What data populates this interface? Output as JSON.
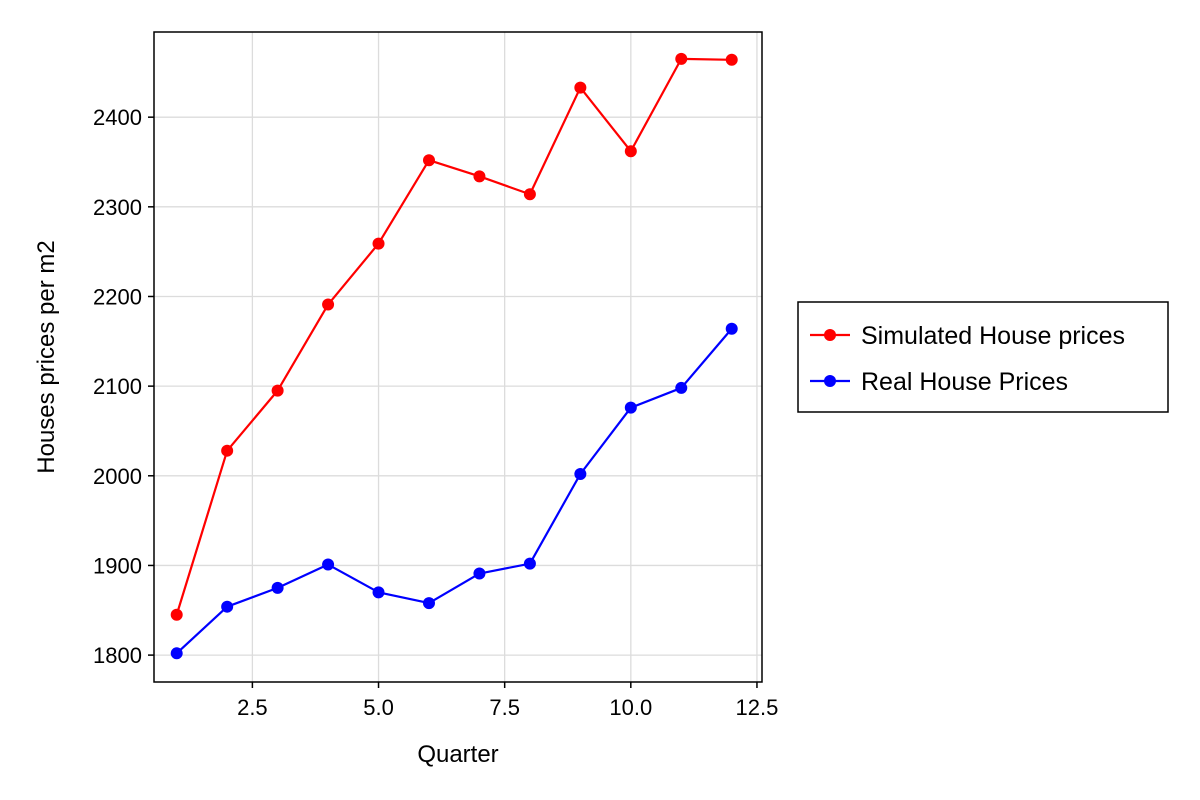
{
  "chart_data": {
    "type": "line",
    "title": "",
    "xlabel": "Quarter",
    "ylabel": "Houses prices per m2",
    "xlim": [
      0.55,
      12.6
    ],
    "ylim": [
      1770,
      2495
    ],
    "xticks": [
      2.5,
      5.0,
      7.5,
      10.0,
      12.5
    ],
    "xtick_labels": [
      "2.5",
      "5.0",
      "7.5",
      "10.0",
      "12.5"
    ],
    "yticks": [
      1800,
      1900,
      2000,
      2100,
      2200,
      2300,
      2400
    ],
    "ytick_labels": [
      "1800",
      "1900",
      "2000",
      "2100",
      "2200",
      "2300",
      "2400"
    ],
    "grid": true,
    "legend_position": "right",
    "x": [
      1,
      2,
      3,
      4,
      5,
      6,
      7,
      8,
      9,
      10,
      11,
      12
    ],
    "series": [
      {
        "name": "Simulated House prices",
        "color": "#ff0000",
        "values": [
          1845,
          2028,
          2095,
          2191,
          2259,
          2352,
          2334,
          2314,
          2433,
          2362,
          2465,
          2464
        ]
      },
      {
        "name": "Real House Prices",
        "color": "#0000ff",
        "values": [
          1802,
          1854,
          1875,
          1901,
          1870,
          1858,
          1891,
          1902,
          2002,
          2076,
          2098,
          2164
        ]
      }
    ]
  }
}
